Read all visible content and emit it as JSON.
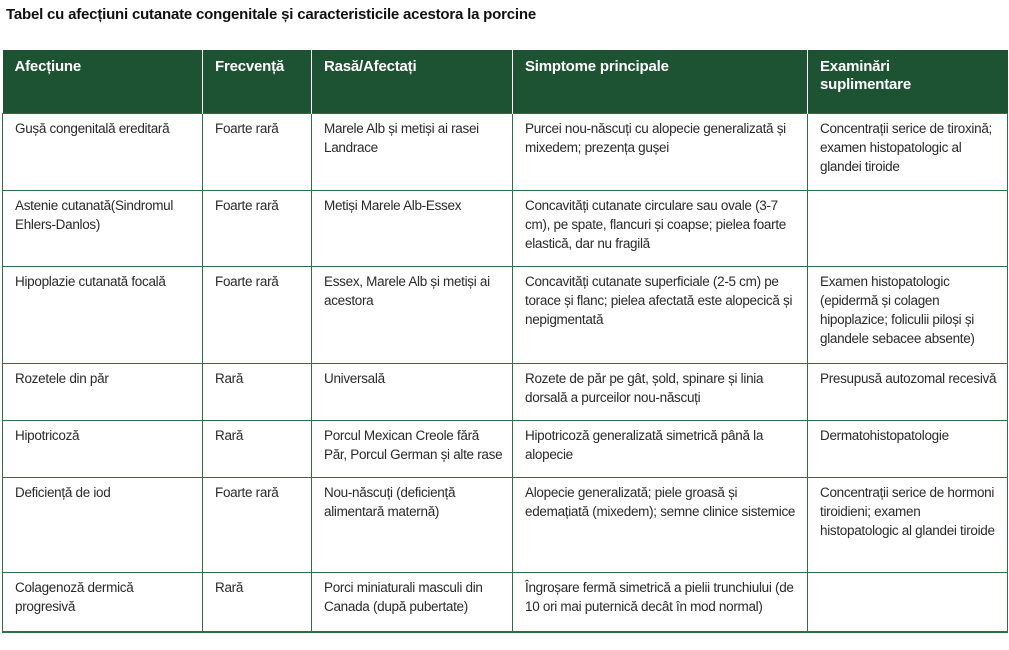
{
  "title": "Tabel cu afecțiuni cutanate congenitale și caracteristicile acestora la porcine",
  "table": {
    "headers": [
      "Afecțiune",
      "Frecvență",
      "Rasă/Afectați",
      "Simptome principale",
      "Examinări suplimentare"
    ],
    "rows": [
      [
        "Gușă congenitală ereditară",
        "Foarte rară",
        "Marele Alb și metiși ai rasei Landrace",
        "Purcei nou-născuți cu alopecie generalizată și mixedem; prezența gușei",
        "Concentrații serice de tiroxină; examen histopatologic al glandei tiroide"
      ],
      [
        "Astenie cutanată(Sindromul Ehlers-Danlos)",
        "Foarte rară",
        "Metiși Marele Alb-Essex",
        "Concavități cutanate circulare sau ovale (3-7 cm), pe spate, flancuri și coapse; pielea foarte elastică, dar nu fragilă",
        ""
      ],
      [
        "Hipoplazie cutanată focală",
        "Foarte rară",
        "Essex, Marele Alb și metiși ai acestora",
        "Concavități cutanate superficiale (2-5 cm) pe torace și flanc; pielea afectată este alopecică și nepigmentată",
        "Examen histopatologic (epidermă și colagen hipoplazice; foliculii piloși și glandele sebacee absente)"
      ],
      [
        "Rozetele din păr",
        "Rară",
        "Universală",
        "Rozete de păr pe gât, șold, spinare și linia dorsală a purceilor nou-născuți",
        "Presupusă autozomal recesivă"
      ],
      [
        "Hipotricoză",
        "Rară",
        "Porcul Mexican Creole fără Păr, Porcul German și alte rase",
        "Hipotricoză generalizată simetrică până la alopecie",
        "Dermatohistopatologie"
      ],
      [
        "Deficiență de iod",
        "Foarte rară",
        "Nou-născuți (deficiență alimentară maternă)",
        "Alopecie generalizată; piele groasă și edemațiată (mixedem); semne clinice sistemice",
        "Concentrații serice de hormoni tiroidieni; examen histopatologic al glandei tiroide"
      ],
      [
        "Colagenoză dermică progresivă",
        "Rară",
        "Porci miniaturali masculi din Canada (după pubertate)",
        "Îngroșare fermă simetrică a pielii trunchiului (de 10 ori mai puternică decât în mod normal)",
        ""
      ]
    ]
  }
}
